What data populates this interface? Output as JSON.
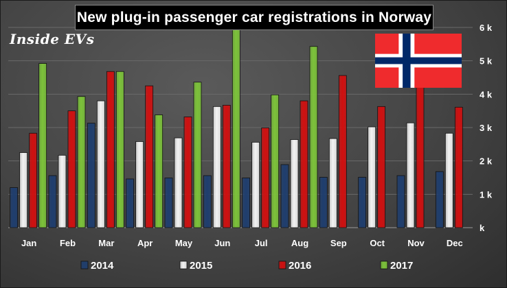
{
  "title": "New plug-in passenger car registrations in Norway",
  "brand": "Inside EVs",
  "flag_icon": "norway-flag-icon",
  "colors": {
    "2014": "#1f3e6e",
    "2015": "#f2f2f2",
    "2016": "#d01010",
    "2017": "#7cc23a",
    "flag_red": "#ef2b2d",
    "flag_blue": "#002868"
  },
  "chart_data": {
    "type": "bar",
    "title": "New plug-in passenger car registrations in Norway",
    "categories": [
      "Jan",
      "Feb",
      "Mar",
      "Apr",
      "May",
      "Jun",
      "Jul",
      "Aug",
      "Sep",
      "Oct",
      "Nov",
      "Dec"
    ],
    "series": [
      {
        "name": "2014",
        "values": [
          1200,
          1560,
          3130,
          1460,
          1490,
          1560,
          1490,
          1890,
          1510,
          1510,
          1560,
          1680
        ]
      },
      {
        "name": "2015",
        "values": [
          2250,
          2170,
          3800,
          2580,
          2690,
          3630,
          2560,
          2640,
          2670,
          3020,
          3140,
          2830
        ]
      },
      {
        "name": "2016",
        "values": [
          2830,
          3500,
          4680,
          4250,
          3320,
          3670,
          2990,
          3800,
          4560,
          3630,
          4330,
          3610
        ]
      },
      {
        "name": "2017",
        "values": [
          4920,
          3930,
          4680,
          3380,
          4360,
          6040,
          3980,
          5430,
          null,
          null,
          null,
          null
        ]
      }
    ],
    "y_ticks": [
      "k",
      "1 k",
      "2 k",
      "3 k",
      "4 k",
      "5 k",
      "6 k"
    ],
    "y_tick_values": [
      0,
      1000,
      2000,
      3000,
      4000,
      5000,
      6000
    ],
    "ylim": [
      0,
      6000
    ],
    "y_axis_side": "right",
    "grid": true,
    "legend_position": "bottom"
  }
}
